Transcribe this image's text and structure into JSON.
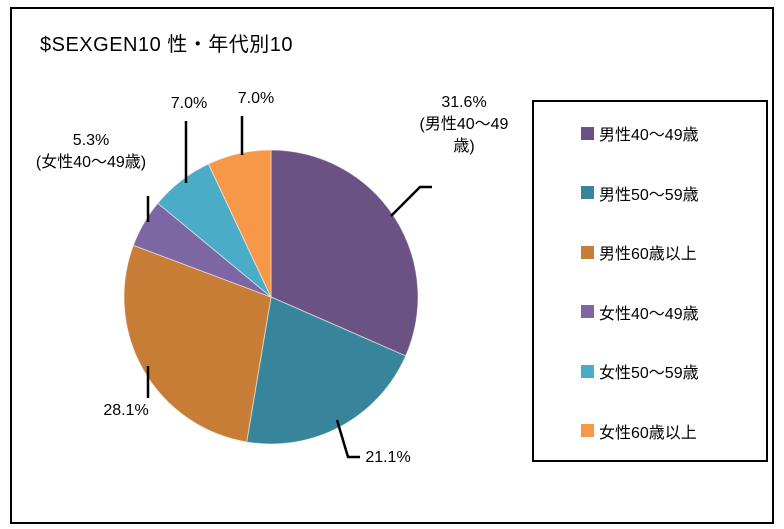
{
  "title": "$SEXGEN10 性・年代別10",
  "chart_data": {
    "type": "pie",
    "title": "$SEXGEN10 性・年代別10",
    "categories": [
      "男性40〜49歳",
      "男性50〜59歳",
      "男性60歳以上",
      "女性40〜49歳",
      "女性50〜59歳",
      "女性60歳以上"
    ],
    "values": [
      31.6,
      21.1,
      28.1,
      5.3,
      7.0,
      7.0
    ],
    "unit": "%",
    "colors": [
      "#6A5384",
      "#38859B",
      "#C87D36",
      "#7D66A4",
      "#4AACC6",
      "#F79748"
    ],
    "start_angle_deg": 0,
    "direction": "clockwise",
    "legend_position": "right",
    "slice_labels": [
      {
        "lines": [
          "31.6%",
          "(男性40〜49",
          "歳)"
        ]
      },
      {
        "lines": [
          "21.1%"
        ]
      },
      {
        "lines": [
          "28.1%"
        ]
      },
      {
        "lines": [
          "5.3%",
          "(女性40〜49歳)"
        ]
      },
      {
        "lines": [
          "7.0%"
        ]
      },
      {
        "lines": [
          "7.0%"
        ]
      }
    ]
  },
  "legend": {
    "items": [
      {
        "label": "男性40〜49歳",
        "color": "#6A5384"
      },
      {
        "label": "男性50〜59歳",
        "color": "#38859B"
      },
      {
        "label": "男性60歳以上",
        "color": "#C87D36"
      },
      {
        "label": "女性40〜49歳",
        "color": "#7D66A4"
      },
      {
        "label": "女性50〜59歳",
        "color": "#4AACC6"
      },
      {
        "label": "女性60歳以上",
        "color": "#F79748"
      }
    ]
  }
}
